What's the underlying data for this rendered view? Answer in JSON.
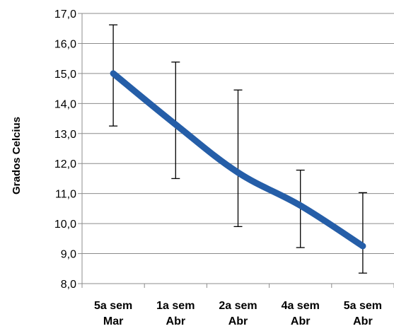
{
  "chart_data": {
    "type": "line",
    "categories": [
      [
        "5a sem",
        "Mar"
      ],
      [
        "1a sem",
        "Abr"
      ],
      [
        "2a sem",
        "Abr"
      ],
      [
        "4a sem",
        "Abr"
      ],
      [
        "5a sem",
        "Abr"
      ]
    ],
    "series": [
      {
        "values": [
          15.0,
          13.3,
          11.7,
          10.6,
          9.25
        ],
        "error_low": [
          13.25,
          11.5,
          9.9,
          9.2,
          8.35
        ],
        "error_high": [
          16.62,
          15.38,
          14.45,
          11.78,
          11.03
        ],
        "color": "#255ea8"
      }
    ],
    "xlabel": "",
    "ylabel": "Grados Celcius",
    "ylim": [
      8.0,
      17.0
    ],
    "yticks": [
      "8,0",
      "9,0",
      "10,0",
      "11,0",
      "12,0",
      "13,0",
      "14,0",
      "15,0",
      "16,0",
      "17,0"
    ],
    "grid": true,
    "legend": "none"
  }
}
